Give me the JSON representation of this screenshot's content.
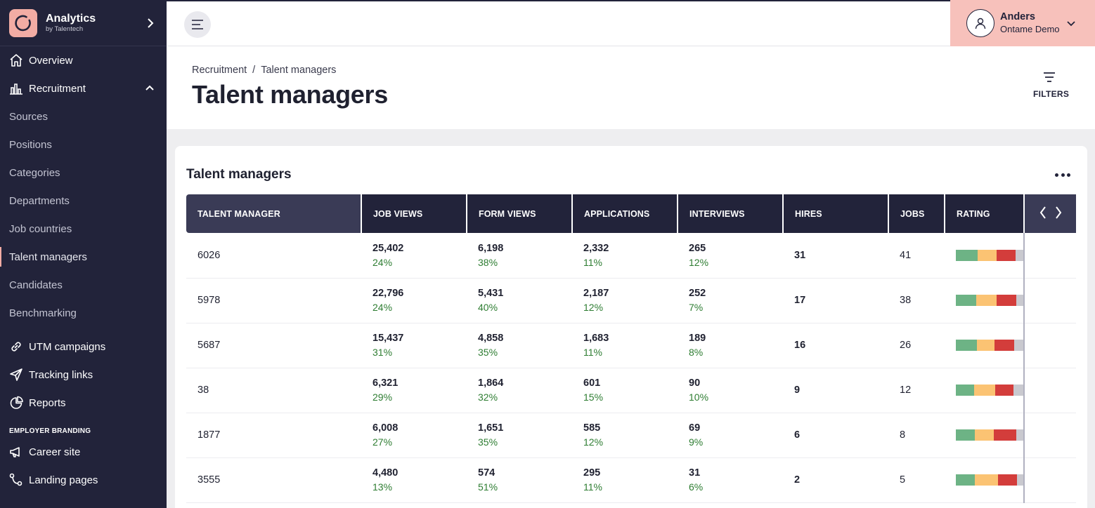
{
  "brand": {
    "title": "Analytics",
    "subtitle": "by Talentech"
  },
  "sidebar": {
    "overview": "Overview",
    "recruitment": "Recruitment",
    "sub_items": [
      "Sources",
      "Positions",
      "Categories",
      "Departments",
      "Job countries",
      "Talent managers",
      "Candidates",
      "Benchmarking"
    ],
    "utm": "UTM campaigns",
    "tracking": "Tracking links",
    "reports": "Reports",
    "section_label": "EMPLOYER BRANDING",
    "career": "Career site",
    "landing": "Landing pages"
  },
  "user": {
    "name": "Anders",
    "org": "Ontame Demo"
  },
  "header": {
    "breadcrumb_parent": "Recruitment",
    "breadcrumb_sep": "/",
    "breadcrumb_current": "Talent managers",
    "title": "Talent managers",
    "filters_label": "FILTERS"
  },
  "card": {
    "title": "Talent managers"
  },
  "table": {
    "columns": [
      "TALENT MANAGER",
      "JOB VIEWS",
      "FORM VIEWS",
      "APPLICATIONS",
      "INTERVIEWS",
      "HIRES",
      "JOBS",
      "RATING"
    ],
    "rows": [
      {
        "manager": "6026",
        "job_views": "25,402",
        "job_views_pct": "24%",
        "form_views": "6,198",
        "form_views_pct": "38%",
        "applications": "2,332",
        "applications_pct": "11%",
        "interviews": "265",
        "interviews_pct": "12%",
        "hires": "31",
        "jobs": "41",
        "rating": [
          0.32,
          0.28,
          0.29,
          0.11
        ]
      },
      {
        "manager": "5978",
        "job_views": "22,796",
        "job_views_pct": "24%",
        "form_views": "5,431",
        "form_views_pct": "40%",
        "applications": "2,187",
        "applications_pct": "12%",
        "interviews": "252",
        "interviews_pct": "7%",
        "hires": "17",
        "jobs": "38",
        "rating": [
          0.3,
          0.3,
          0.3,
          0.1
        ]
      },
      {
        "manager": "5687",
        "job_views": "15,437",
        "job_views_pct": "31%",
        "form_views": "4,858",
        "form_views_pct": "35%",
        "applications": "1,683",
        "applications_pct": "11%",
        "interviews": "189",
        "interviews_pct": "8%",
        "hires": "16",
        "jobs": "26",
        "rating": [
          0.31,
          0.26,
          0.29,
          0.14
        ]
      },
      {
        "manager": "38",
        "job_views": "6,321",
        "job_views_pct": "29%",
        "form_views": "1,864",
        "form_views_pct": "32%",
        "applications": "601",
        "applications_pct": "15%",
        "interviews": "90",
        "interviews_pct": "10%",
        "hires": "9",
        "jobs": "12",
        "rating": [
          0.27,
          0.31,
          0.27,
          0.15
        ]
      },
      {
        "manager": "1877",
        "job_views": "6,008",
        "job_views_pct": "27%",
        "form_views": "1,651",
        "form_views_pct": "35%",
        "applications": "585",
        "applications_pct": "12%",
        "interviews": "69",
        "interviews_pct": "9%",
        "hires": "6",
        "jobs": "8",
        "rating": [
          0.28,
          0.28,
          0.34,
          0.1
        ]
      },
      {
        "manager": "3555",
        "job_views": "4,480",
        "job_views_pct": "13%",
        "form_views": "574",
        "form_views_pct": "51%",
        "applications": "295",
        "applications_pct": "11%",
        "interviews": "31",
        "interviews_pct": "6%",
        "hires": "2",
        "jobs": "5",
        "rating": [
          0.28,
          0.34,
          0.29,
          0.09
        ]
      }
    ]
  },
  "colors": {
    "sidebar_bg": "#22233a",
    "accent": "#f7c1bb",
    "rating_green": "#6db385",
    "rating_yellow": "#fbc373",
    "rating_red": "#d33d3b",
    "rating_grey": "#c9c9cf",
    "pct_green": "#2e7d32"
  },
  "icons": [
    "logo-icon",
    "chevron-right-icon",
    "home-icon",
    "bar-chart-icon",
    "chevron-up-icon",
    "link-icon",
    "send-icon",
    "pie-chart-icon",
    "megaphone-icon",
    "share-icon",
    "hamburger-icon",
    "user-icon",
    "chevron-down-icon",
    "filter-icon",
    "more-icon",
    "arrow-left-icon",
    "arrow-right-icon"
  ]
}
